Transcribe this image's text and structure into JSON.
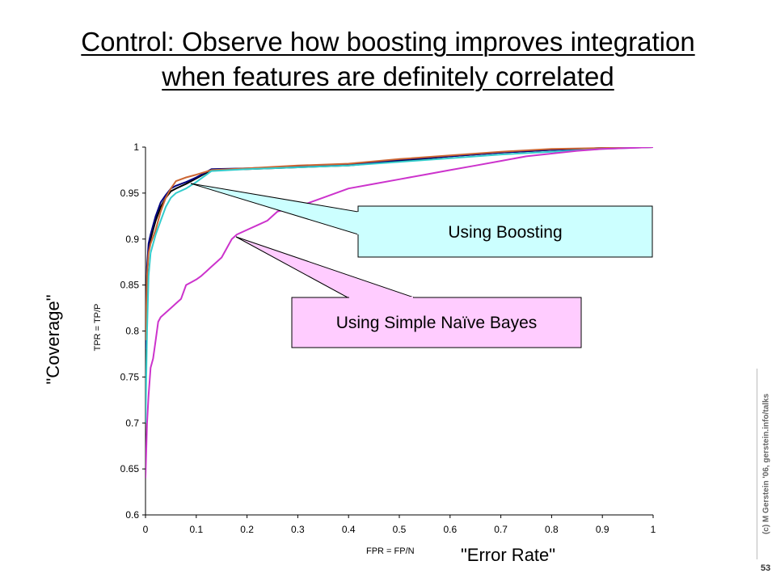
{
  "title": "Control: Observe how boosting improves integration when features are definitely correlated",
  "ylabel_big": "\"Coverage\"",
  "ylabel_small": "TPR = TP/P",
  "xlabel_small": "FPR = FP/N",
  "xlabel_big": "\"Error Rate\"",
  "copyright": "(c) M Gerstein '06, gerstein.info/talks",
  "page_number": "53",
  "callouts": {
    "boosting": "Using Boosting",
    "naive_bayes": "Using Simple Naïve Bayes"
  },
  "colors": {
    "boosting_box": "#ccffff",
    "naive_box": "#ffccff",
    "magenta": "#cc33cc",
    "cyan": "#33cccc",
    "orange": "#cc6633",
    "navy": "#000080",
    "black": "#000000"
  },
  "chart_data": {
    "type": "line",
    "xlim": [
      0,
      1
    ],
    "ylim": [
      0.6,
      1
    ],
    "x_ticks": [
      "0",
      "0.1",
      "0.2",
      "0.3",
      "0.4",
      "0.5",
      "0.6",
      "0.7",
      "0.8",
      "0.9",
      "1"
    ],
    "y_ticks": [
      "0.6",
      "0.65",
      "0.7",
      "0.75",
      "0.8",
      "0.85",
      "0.9",
      "0.95",
      "1"
    ],
    "grid": false,
    "series": [
      {
        "color": "#000000",
        "x": [
          0,
          0.003,
          0.006,
          0.01,
          0.015,
          0.02,
          0.03,
          0.04,
          0.05,
          0.06,
          0.08,
          0.1,
          0.13,
          0.2,
          0.3,
          0.4,
          0.5,
          0.6,
          0.7,
          0.8,
          0.9,
          1
        ],
        "y": [
          0.775,
          0.86,
          0.89,
          0.9,
          0.91,
          0.92,
          0.935,
          0.945,
          0.952,
          0.955,
          0.96,
          0.966,
          0.975,
          0.976,
          0.978,
          0.98,
          0.985,
          0.99,
          0.994,
          0.997,
          0.999,
          1
        ]
      },
      {
        "color": "#000080",
        "x": [
          0,
          0.003,
          0.006,
          0.01,
          0.015,
          0.02,
          0.03,
          0.04,
          0.05,
          0.06,
          0.08,
          0.1,
          0.13,
          0.2,
          0.3,
          0.4,
          0.5,
          0.6,
          0.7,
          0.8,
          0.9,
          1
        ],
        "y": [
          0.78,
          0.87,
          0.895,
          0.905,
          0.915,
          0.925,
          0.94,
          0.948,
          0.955,
          0.958,
          0.962,
          0.967,
          0.976,
          0.977,
          0.979,
          0.981,
          0.986,
          0.99,
          0.994,
          0.997,
          0.999,
          1
        ]
      },
      {
        "color": "#cc6633",
        "x": [
          0,
          0.003,
          0.006,
          0.01,
          0.02,
          0.03,
          0.04,
          0.05,
          0.06,
          0.08,
          0.1,
          0.13,
          0.2,
          0.3,
          0.4,
          0.5,
          0.6,
          0.7,
          0.8,
          0.9,
          1
        ],
        "y": [
          0.79,
          0.86,
          0.885,
          0.895,
          0.91,
          0.93,
          0.945,
          0.955,
          0.963,
          0.967,
          0.97,
          0.975,
          0.977,
          0.98,
          0.982,
          0.987,
          0.991,
          0.995,
          0.998,
          0.999,
          1
        ]
      },
      {
        "color": "#33cccc",
        "x": [
          0,
          0.003,
          0.006,
          0.01,
          0.02,
          0.03,
          0.04,
          0.05,
          0.06,
          0.08,
          0.1,
          0.13,
          0.2,
          0.3,
          0.4,
          0.5,
          0.6,
          0.7,
          0.8,
          0.9,
          1
        ],
        "y": [
          0.7,
          0.8,
          0.86,
          0.885,
          0.905,
          0.92,
          0.935,
          0.945,
          0.95,
          0.955,
          0.962,
          0.974,
          0.976,
          0.978,
          0.98,
          0.984,
          0.988,
          0.992,
          0.995,
          0.998,
          1
        ]
      },
      {
        "color": "#cc33cc",
        "x": [
          0,
          0.003,
          0.006,
          0.01,
          0.015,
          0.02,
          0.025,
          0.03,
          0.04,
          0.05,
          0.06,
          0.07,
          0.08,
          0.09,
          0.1,
          0.11,
          0.12,
          0.13,
          0.14,
          0.15,
          0.16,
          0.17,
          0.18,
          0.2,
          0.22,
          0.24,
          0.26,
          0.3,
          0.35,
          0.4,
          0.45,
          0.5,
          0.55,
          0.6,
          0.65,
          0.7,
          0.75,
          0.8,
          0.85,
          0.9,
          0.95,
          1
        ],
        "y": [
          0.64,
          0.7,
          0.73,
          0.76,
          0.77,
          0.79,
          0.81,
          0.815,
          0.82,
          0.825,
          0.83,
          0.835,
          0.85,
          0.853,
          0.856,
          0.86,
          0.865,
          0.87,
          0.875,
          0.88,
          0.89,
          0.9,
          0.905,
          0.91,
          0.915,
          0.92,
          0.93,
          0.935,
          0.945,
          0.955,
          0.96,
          0.965,
          0.97,
          0.975,
          0.98,
          0.985,
          0.99,
          0.993,
          0.996,
          0.998,
          0.999,
          1
        ]
      }
    ]
  }
}
